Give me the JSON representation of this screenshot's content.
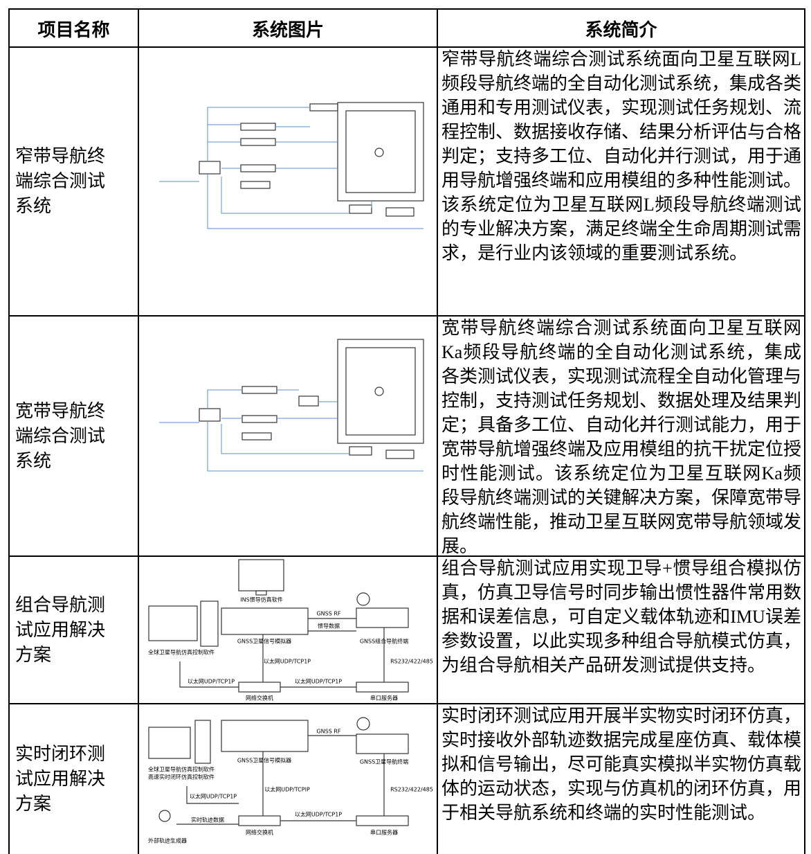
{
  "table": {
    "headers": [
      "项目名称",
      "系统图片",
      "系统简介"
    ],
    "rows": [
      {
        "name": "窄带导航终端综合测试系统",
        "description": "窄带导航终端综合测试系统面向卫星互联网L频段导航终端的全自动化测试系统，集成各类通用和专用测试仪表，实现测试任务规划、流程控制、数据接收存储、结果分析评估与合格判定；支持多工位、自动化并行测试，用于通用导航增强终端和应用模组的多种性能测试。该系统定位为卫星互联网L频段导航终端测试的专业解决方案，满足终端全生命周期测试需求，是行业内该领域的重要测试系统。"
      },
      {
        "name": "宽带导航终端综合测试系统",
        "description": "宽带导航终端综合测试系统面向卫星互联网Ka频段导航终端的全自动化测试系统，集成各类测试仪表，实现测试流程全自动化管理与控制，支持测试任务规划、数据处理及结果判定；具备多工位、自动化并行测试能力，用于宽带导航增强终端及应用模组的抗干扰定位授时性能测试。该系统定位为卫星互联网Ka频段导航终端测试的关键解决方案，保障宽带导航终端性能，推动卫星互联网宽带导航领域发展。"
      },
      {
        "name": "组合导航测试应用解决方案",
        "description": "组合导航测试应用实现卫导+惯导组合模拟仿真，仿真卫导信号时同步输出惯性器件常用数据和误差信息，可自定义载体轨迹和IMU误差参数设置，以此实现多种组合导航模式仿真，为组合导航相关产品研发测试提供支持。"
      },
      {
        "name": "实时闭环测试应用解决方案",
        "description": "实时闭环测试应用开展半实物实时闭环仿真，实时接收外部轨迹数据完成星座仿真、载体模拟和信号输出，尽可能真实模拟半实物仿真载体的运动状态，实现与仿真机的闭环仿真，用于相关导航系统和终端的实时性能测试。"
      }
    ]
  },
  "diagrams": {
    "integrated": [
      "INS惯导仿真软件",
      "GNSS RF",
      "惯导数据",
      "GNSS卫星信号模拟器",
      "GNSS组合导航终端",
      "全球卫星导航仿真控制软件",
      "以太网UDP/TCP1P",
      "RS232/422/485",
      "以太网UDP/TCP1P",
      "以太网UDP/TCP1P",
      "网络交换机",
      "串口服务器"
    ],
    "closed_loop": [
      "GNSS RF",
      "全球卫星导航仿真控制软件",
      "高速实时闭环仿真控制软件",
      "GNSS卫星信号模拟器",
      "GNSS卫星导航终端",
      "以太网UDP/TCP1P",
      "以太网UDP/TCPIP",
      "RS232/422/485",
      "实时轨迹数据",
      "网络交换机",
      "以太网UDP/TCP1P",
      "串口服务器",
      "外部轨迹生成器"
    ]
  }
}
